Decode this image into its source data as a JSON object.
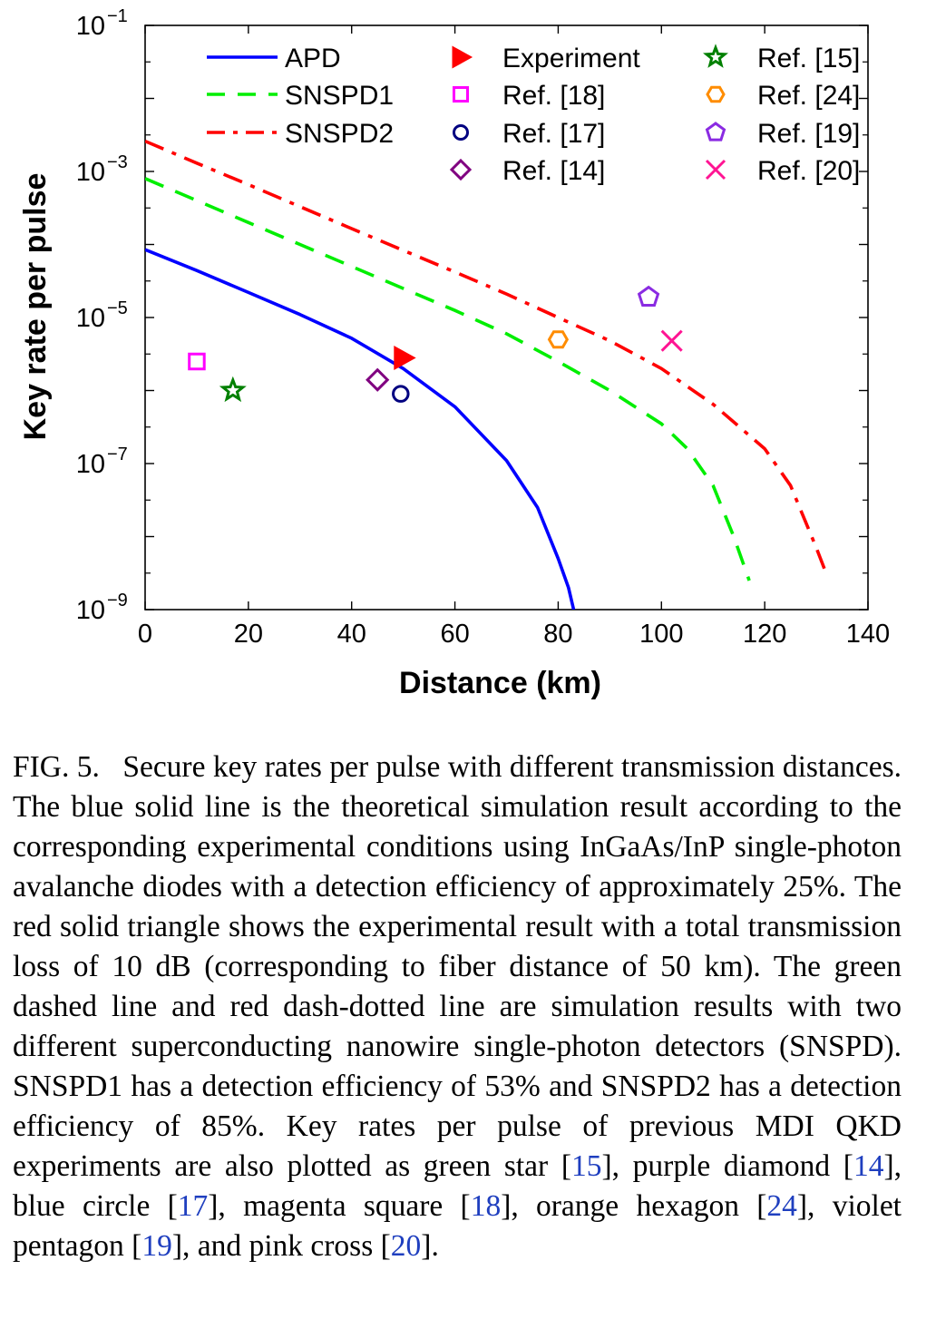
{
  "chart_data": {
    "type": "line",
    "xlabel": "Distance (km)",
    "ylabel": "Key rate per pulse",
    "xlim": [
      0,
      140
    ],
    "ylim": [
      1e-09,
      0.1
    ],
    "y_scale": "log",
    "x_ticks": [
      0,
      20,
      40,
      60,
      80,
      100,
      120,
      140
    ],
    "x_tick_labels": [
      "0",
      "20",
      "40",
      "60",
      "80",
      "100",
      "120",
      "140"
    ],
    "y_ticks": [
      1e-09,
      1e-07,
      1e-05,
      0.001,
      0.1
    ],
    "y_tick_labels": [
      {
        "base": "10",
        "exp": "−9"
      },
      {
        "base": "10",
        "exp": "−7"
      },
      {
        "base": "10",
        "exp": "−5"
      },
      {
        "base": "10",
        "exp": "−3"
      },
      {
        "base": "10",
        "exp": "−1"
      }
    ],
    "grid": false,
    "legend_position": "top",
    "series": [
      {
        "name": "APD",
        "color": "#0000ff",
        "style": "solid",
        "points": [
          [
            0,
            8.5e-05
          ],
          [
            10,
            4.4e-05
          ],
          [
            20,
            2.2e-05
          ],
          [
            30,
            1.1e-05
          ],
          [
            40,
            5.2e-06
          ],
          [
            50,
            2e-06
          ],
          [
            60,
            6e-07
          ],
          [
            70,
            1.1e-07
          ],
          [
            76,
            2.5e-08
          ],
          [
            80,
            5e-09
          ],
          [
            82,
            2e-09
          ],
          [
            83,
            1e-09
          ]
        ]
      },
      {
        "name": "SNSPD1",
        "color": "#00ee00",
        "style": "dashed",
        "points": [
          [
            0,
            0.0008
          ],
          [
            10,
            0.0004
          ],
          [
            20,
            0.0002
          ],
          [
            30,
            0.0001
          ],
          [
            40,
            5e-05
          ],
          [
            50,
            2.5e-05
          ],
          [
            60,
            1.25e-05
          ],
          [
            70,
            6e-06
          ],
          [
            80,
            2.5e-06
          ],
          [
            90,
            1e-06
          ],
          [
            100,
            3.5e-07
          ],
          [
            105,
            1.6e-07
          ],
          [
            110,
            5e-08
          ],
          [
            114,
            1e-08
          ],
          [
            117,
            2.5e-09
          ]
        ]
      },
      {
        "name": "SNSPD2",
        "color": "#ff0000",
        "style": "dashdot",
        "points": [
          [
            0,
            0.0026
          ],
          [
            10,
            0.0013
          ],
          [
            20,
            0.00066
          ],
          [
            30,
            0.00033
          ],
          [
            40,
            0.000165
          ],
          [
            50,
            8.3e-05
          ],
          [
            60,
            4.2e-05
          ],
          [
            70,
            2.1e-05
          ],
          [
            80,
            1e-05
          ],
          [
            90,
            4.8e-06
          ],
          [
            100,
            2e-06
          ],
          [
            110,
            6.5e-07
          ],
          [
            120,
            1.6e-07
          ],
          [
            125,
            5e-08
          ],
          [
            130,
            7e-09
          ],
          [
            132,
            3e-09
          ]
        ]
      }
    ],
    "markers": [
      {
        "name": "Experiment",
        "x": 50,
        "y": 2.8e-06,
        "shape": "triangle-right",
        "color": "#ff0000",
        "filled": true
      },
      {
        "name": "Ref. [18]",
        "x": 10,
        "y": 2.5e-06,
        "shape": "square",
        "color": "#ff00ff",
        "filled": false
      },
      {
        "name": "Ref. [17]",
        "x": 49.5,
        "y": 9e-07,
        "shape": "circle",
        "color": "#000080",
        "filled": false
      },
      {
        "name": "Ref. [14]",
        "x": 45,
        "y": 1.4e-06,
        "shape": "diamond",
        "color": "#800080",
        "filled": false
      },
      {
        "name": "Ref. [15]",
        "x": 17,
        "y": 1e-06,
        "shape": "star",
        "color": "#008000",
        "filled": false
      },
      {
        "name": "Ref. [24]",
        "x": 80,
        "y": 5e-06,
        "shape": "hexagon",
        "color": "#ff8c00",
        "filled": false
      },
      {
        "name": "Ref. [19]",
        "x": 97.5,
        "y": 1.9e-05,
        "shape": "pentagon",
        "color": "#8a2be2",
        "filled": false
      },
      {
        "name": "Ref. [20]",
        "x": 102,
        "y": 4.8e-06,
        "shape": "cross",
        "color": "#ff1493",
        "filled": false
      }
    ]
  },
  "caption": {
    "lead": "FIG. 5.",
    "segments": [
      {
        "t": "Secure key rates per pulse with different transmission distances. The blue solid line is the theoretical simulation result according to the corresponding experimental conditions using InGaAs/InP single-photon avalanche diodes with a detection efficiency of approximately 25%. The red solid triangle shows the experimental result with a total transmission loss of 10 dB (corresponding to fiber distance of 50 km). The green dashed line and red dash-dotted line are simulation results with two different superconducting nanowire single-photon detectors (SNSPD). SNSPD1 has a detection efficiency of 53% and SNSPD2 has a detection efficiency of 85%. Key rates per pulse of previous MDI QKD experiments are also plotted as green star [",
        "ref": false
      },
      {
        "t": "15",
        "ref": true
      },
      {
        "t": "], purple diamond [",
        "ref": false
      },
      {
        "t": "14",
        "ref": true
      },
      {
        "t": "], blue circle [",
        "ref": false
      },
      {
        "t": "17",
        "ref": true
      },
      {
        "t": "], magenta square [",
        "ref": false
      },
      {
        "t": "18",
        "ref": true
      },
      {
        "t": "], orange hexagon [",
        "ref": false
      },
      {
        "t": "24",
        "ref": true
      },
      {
        "t": "], violet pentagon [",
        "ref": false
      },
      {
        "t": "19",
        "ref": true
      },
      {
        "t": "], and pink cross [",
        "ref": false
      },
      {
        "t": "20",
        "ref": true
      },
      {
        "t": "].",
        "ref": false
      }
    ]
  }
}
